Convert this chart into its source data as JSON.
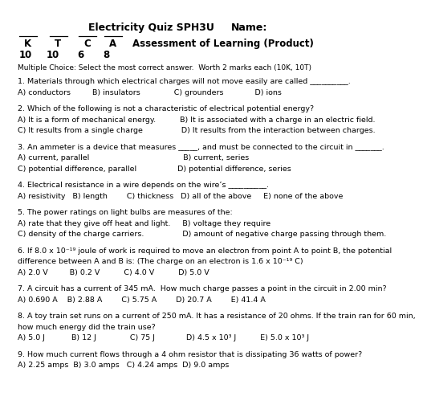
{
  "title_left": "Electricity Quiz SPH3U",
  "title_right": "Name:",
  "ktca_labels": [
    "K",
    "T",
    "C",
    "A"
  ],
  "ktca_scores": [
    "10",
    "10",
    "6",
    "8"
  ],
  "subtitle_right": "Assessment of Learning (Product)",
  "instruction": "Multiple Choice: Select the most correct answer.  Worth 2 marks each (10K, 10T)",
  "questions": [
    {
      "q": "1. Materials through which electrical charges will not move easily are called __________.",
      "lines": [
        "A) conductors         B) insulators              C) grounders             D) ions"
      ]
    },
    {
      "q": "2. Which of the following is not a characteristic of electrical potential energy?",
      "lines": [
        "A) It is a form of mechanical energy.          B) It is associated with a charge in an electric field.",
        "C) It results from a single charge                D) It results from the interaction between charges."
      ]
    },
    {
      "q": "3. An ammeter is a device that measures _____, and must be connected to the circuit in _______.",
      "lines": [
        "A) current, parallel                                       B) current, series",
        "C) potential difference, parallel                 D) potential difference, series"
      ]
    },
    {
      "q": "4. Electrical resistance in a wire depends on the wire’s __________.",
      "lines": [
        "A) resistivity   B) length        C) thickness   D) all of the above     E) none of the above"
      ]
    },
    {
      "q": "5. The power ratings on light bulbs are measures of the:",
      "lines": [
        "A) rate that they give off heat and light.     B) voltage they require",
        "C) density of the charge carriers.                D) amount of negative charge passing through them."
      ]
    },
    {
      "q": "6. If 8.0 x 10⁻¹⁹ joule of work is required to move an electron from point A to point B, the potential",
      "q2": "difference between A and B is: (The charge on an electron is 1.6 x 10⁻¹⁹ C)",
      "lines": [
        "A) 2.0 V         B) 0.2 V          C) 4.0 V          D) 5.0 V"
      ]
    },
    {
      "q": "7. A circuit has a current of 345 mA.  How much charge passes a point in the circuit in 2.00 min?",
      "lines": [
        "A) 0.690 A    B) 2.88 A        C) 5.75 A        D) 20.7 A        E) 41.4 A"
      ]
    },
    {
      "q": "8. A toy train set runs on a current of 250 mA. It has a resistance of 20 ohms. If the train ran for 60 min,",
      "q2": "how much energy did the train use?",
      "lines": [
        "A) 5.0 J           B) 12 J              C) 75 J             D) 4.5 x 10³ J          E) 5.0 x 10³ J"
      ]
    },
    {
      "q": "9. How much current flows through a 4 ohm resistor that is dissipating 36 watts of power?",
      "lines": [
        "A) 2.25 amps  B) 3.0 amps   C) 4.24 amps  D) 9.0 amps"
      ]
    }
  ],
  "bg_color": "#ffffff",
  "text_color": "#000000",
  "line_color": "#000000"
}
